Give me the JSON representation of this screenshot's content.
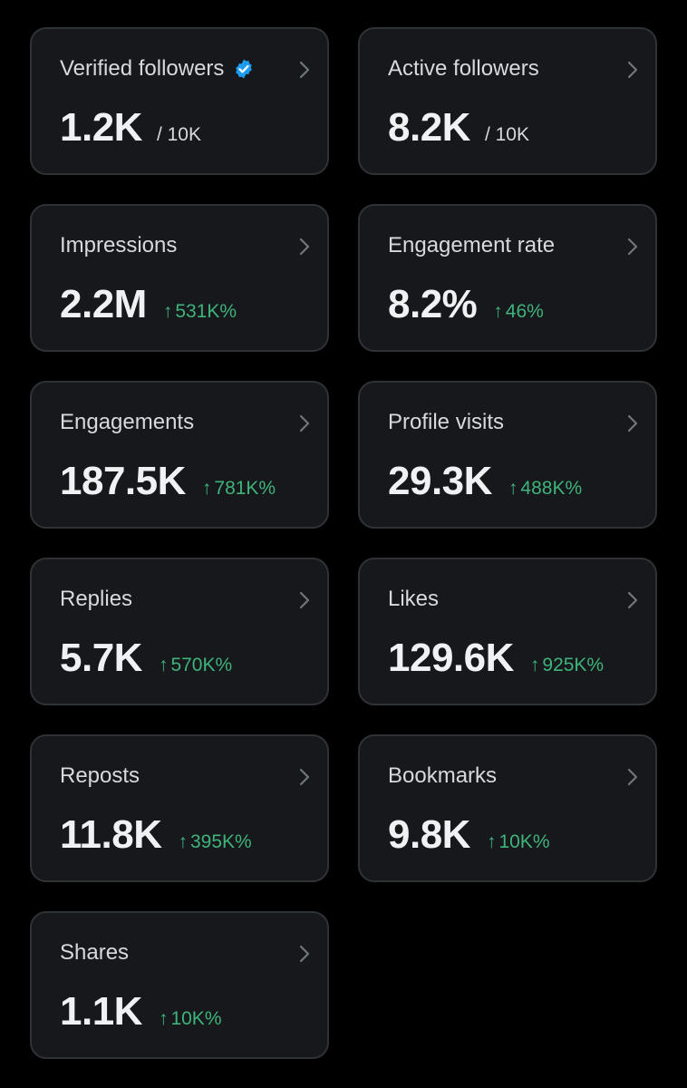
{
  "colors": {
    "background": "#000000",
    "card": "#16181c",
    "card_border": "#2f3336",
    "text": "#e7e9ea",
    "positive": "#3fb37a",
    "verified": "#1d9bf0"
  },
  "cards": [
    {
      "title": "Verified followers",
      "value": "1.2K",
      "sub": "/ 10K",
      "verified_icon": "verified-badge-icon"
    },
    {
      "title": "Active followers",
      "value": "8.2K",
      "sub": "/ 10K"
    },
    {
      "title": "Impressions",
      "value": "2.2M",
      "arrow": "↑",
      "delta": "531K%"
    },
    {
      "title": "Engagement rate",
      "value": "8.2%",
      "arrow": "↑",
      "delta": "46%"
    },
    {
      "title": "Engagements",
      "value": "187.5K",
      "arrow": "↑",
      "delta": "781K%"
    },
    {
      "title": "Profile visits",
      "value": "29.3K",
      "arrow": "↑",
      "delta": "488K%"
    },
    {
      "title": "Replies",
      "value": "5.7K",
      "arrow": "↑",
      "delta": "570K%"
    },
    {
      "title": "Likes",
      "value": "129.6K",
      "arrow": "↑",
      "delta": "925K%"
    },
    {
      "title": "Reposts",
      "value": "11.8K",
      "arrow": "↑",
      "delta": "395K%"
    },
    {
      "title": "Bookmarks",
      "value": "9.8K",
      "arrow": "↑",
      "delta": "10K%"
    },
    {
      "title": "Shares",
      "value": "1.1K",
      "arrow": "↑",
      "delta": "10K%"
    }
  ]
}
